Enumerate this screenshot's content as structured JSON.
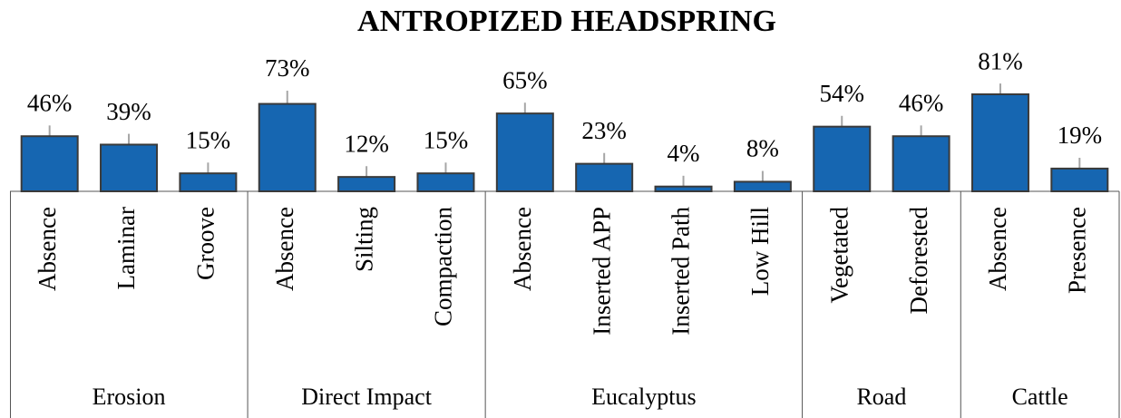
{
  "chart_data": {
    "type": "bar",
    "title": "ANTROPIZED HEADSPRING",
    "categories": [
      "Absence",
      "Laminar",
      "Groove",
      "Absence",
      "Silting",
      "Compaction",
      "Absence",
      "Inserted APP",
      "Inserted Path",
      "Low Hill",
      "Vegetated",
      "Deforested",
      "Absence",
      "Presence"
    ],
    "category_groups": [
      "Erosion",
      "Erosion",
      "Erosion",
      "Direct Impact",
      "Direct Impact",
      "Direct Impact",
      "Eucalyptus",
      "Eucalyptus",
      "Eucalyptus",
      "Eucalyptus",
      "Road",
      "Road",
      "Cattle",
      "Cattle"
    ],
    "values": [
      46,
      39,
      15,
      73,
      12,
      15,
      65,
      23,
      4,
      8,
      54,
      46,
      81,
      19
    ],
    "value_labels": [
      "46%",
      "39%",
      "15%",
      "73%",
      "12%",
      "15%",
      "65%",
      "23%",
      "4%",
      "8%",
      "54%",
      "46%",
      "81%",
      "19%"
    ],
    "errors": [
      9,
      9,
      9,
      11,
      9,
      9,
      9,
      9,
      9,
      9,
      9,
      9,
      9,
      9
    ],
    "color": "#1666b1",
    "error_color": "#a6a6a6"
  }
}
